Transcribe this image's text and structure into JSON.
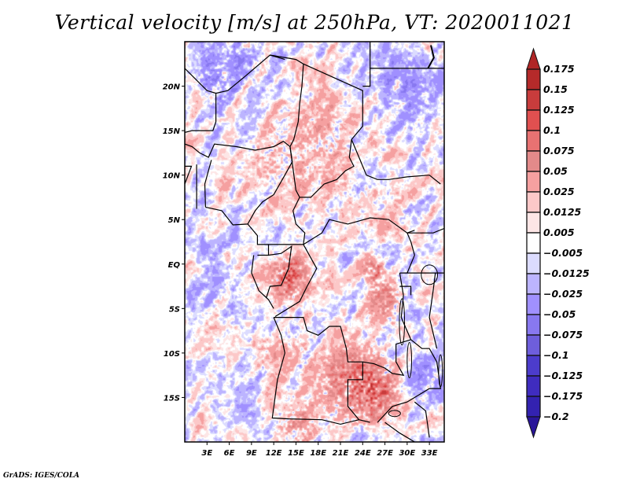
{
  "title": "Vertical velocity [m/s] at 250hPa, VT: 2020011021",
  "footer": "GrADS: IGES/COLA",
  "chart_data": {
    "type": "heatmap",
    "title": "Vertical velocity [m/s] at 250hPa, VT: 2020011021",
    "variable": "Vertical velocity",
    "units": "m/s",
    "level": "250hPa",
    "valid_time": "2020011021",
    "xlabel": "",
    "ylabel": "",
    "xlim": [
      0,
      35
    ],
    "ylim": [
      -20,
      25
    ],
    "grid": false,
    "x_ticks": [
      {
        "value": 3,
        "label": "3E"
      },
      {
        "value": 6,
        "label": "6E"
      },
      {
        "value": 9,
        "label": "9E"
      },
      {
        "value": 12,
        "label": "12E"
      },
      {
        "value": 15,
        "label": "15E"
      },
      {
        "value": 18,
        "label": "18E"
      },
      {
        "value": 21,
        "label": "21E"
      },
      {
        "value": 24,
        "label": "24E"
      },
      {
        "value": 27,
        "label": "27E"
      },
      {
        "value": 30,
        "label": "30E"
      },
      {
        "value": 33,
        "label": "33E"
      }
    ],
    "y_ticks": [
      {
        "value": 20,
        "label": "20N"
      },
      {
        "value": 15,
        "label": "15N"
      },
      {
        "value": 10,
        "label": "10N"
      },
      {
        "value": 5,
        "label": "5N"
      },
      {
        "value": 0,
        "label": "EQ"
      },
      {
        "value": -5,
        "label": "5S"
      },
      {
        "value": -10,
        "label": "10S"
      },
      {
        "value": -15,
        "label": "15S"
      }
    ],
    "colorbar": {
      "placement": "right",
      "levels": [
        0.175,
        0.15,
        0.125,
        0.1,
        0.075,
        0.05,
        0.025,
        0.0125,
        0.005,
        -0.005,
        -0.0125,
        -0.025,
        -0.05,
        -0.075,
        -0.1,
        -0.125,
        -0.175,
        -0.2
      ],
      "labels": [
        "0.175",
        "0.15",
        "0.125",
        "0.1",
        "0.075",
        "0.05",
        "0.025",
        "0.0125",
        "0.005",
        "−0.005",
        "−0.0125",
        "−0.025",
        "−0.05",
        "−0.075",
        "−0.1",
        "−0.125",
        "−0.175",
        "−0.2"
      ],
      "colors_top_to_bottom": [
        "#b02626",
        "#b52a2a",
        "#c83c3c",
        "#e05050",
        "#e87272",
        "#e38a8a",
        "#f5a0a0",
        "#fcc8c8",
        "#fde6e6",
        "#ffffff",
        "#dcdcff",
        "#bcb4ff",
        "#a090ff",
        "#8878f0",
        "#6e5edc",
        "#4c3ccc",
        "#3f2cbf",
        "#3322b0",
        "#2a1699"
      ]
    },
    "features": {
      "notable_strong_ascent": [
        "Congo basin near 13-15E, 1-2S",
        "Zambia/Zimbabwe region 20-28E, 12-16S",
        "Lake Victoria west 25-27E, 3S"
      ],
      "notable_descent": [
        "northern Niger/Algeria 3-9E, 19-22N",
        "Sahel bands 0-4E, 8-12N"
      ]
    }
  }
}
